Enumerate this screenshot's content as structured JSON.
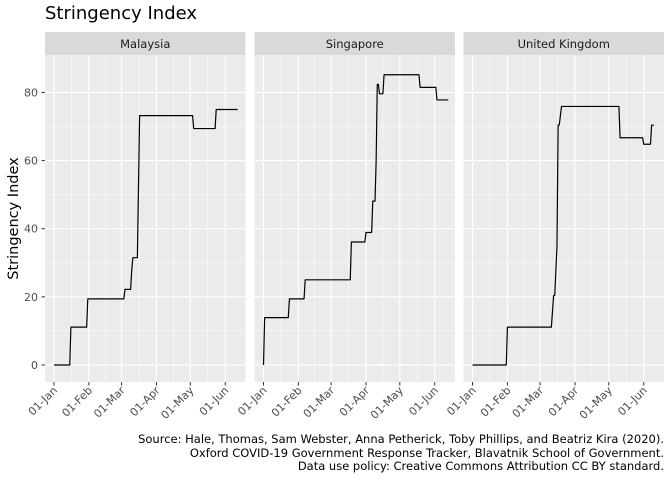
{
  "title": "Stringency Index",
  "caption": {
    "line1": "Source: Hale, Thomas, Sam Webster, Anna Petherick, Toby Phillips, and Beatriz Kira (2020).",
    "line2": "Oxford COVID-19 Government Response Tracker, Blavatnik School of Government.",
    "line3": "Data use policy: Creative Commons Attribution CC BY standard."
  },
  "colors": {
    "panel_bg": "#ebebeb",
    "strip_bg": "#d9d9d9",
    "grid_major": "#ffffff",
    "line": "#000000",
    "tick_text": "#4d4d4d"
  },
  "chart_data": {
    "type": "line",
    "facets": [
      "Malaysia",
      "Singapore",
      "United Kingdom"
    ],
    "ylabel": "Stringency Index",
    "xlabel": "",
    "ylim": [
      -5,
      91
    ],
    "y_ticks": [
      0,
      20,
      40,
      60,
      80
    ],
    "x_ticks": [
      {
        "date": "2020-01-01",
        "label": "01-Jan"
      },
      {
        "date": "2020-02-01",
        "label": "01-Feb"
      },
      {
        "date": "2020-03-01",
        "label": "01-Mar"
      },
      {
        "date": "2020-04-01",
        "label": "01-Apr"
      },
      {
        "date": "2020-05-01",
        "label": "01-May"
      },
      {
        "date": "2020-06-01",
        "label": "01-Jun"
      }
    ],
    "xlim": [
      "2019-12-24",
      "2020-06-19"
    ],
    "grid": true,
    "series": [
      {
        "name": "Malaysia",
        "points": [
          {
            "x": "2020-01-01",
            "y": 0
          },
          {
            "x": "2020-01-15",
            "y": 0
          },
          {
            "x": "2020-01-16",
            "y": 11.1
          },
          {
            "x": "2020-01-30",
            "y": 11.1
          },
          {
            "x": "2020-01-31",
            "y": 19.4
          },
          {
            "x": "2020-03-03",
            "y": 19.4
          },
          {
            "x": "2020-03-04",
            "y": 22.2
          },
          {
            "x": "2020-03-09",
            "y": 22.2
          },
          {
            "x": "2020-03-10",
            "y": 27.8
          },
          {
            "x": "2020-03-11",
            "y": 31.5
          },
          {
            "x": "2020-03-15",
            "y": 31.5
          },
          {
            "x": "2020-03-17",
            "y": 73.2
          },
          {
            "x": "2020-05-03",
            "y": 73.2
          },
          {
            "x": "2020-05-04",
            "y": 69.4
          },
          {
            "x": "2020-05-23",
            "y": 69.4
          },
          {
            "x": "2020-05-24",
            "y": 75
          },
          {
            "x": "2020-06-12",
            "y": 75
          }
        ]
      },
      {
        "name": "Singapore",
        "points": [
          {
            "x": "2020-01-01",
            "y": 0
          },
          {
            "x": "2020-01-02",
            "y": 13.9
          },
          {
            "x": "2020-01-23",
            "y": 13.9
          },
          {
            "x": "2020-01-24",
            "y": 19.4
          },
          {
            "x": "2020-02-06",
            "y": 19.4
          },
          {
            "x": "2020-02-07",
            "y": 25
          },
          {
            "x": "2020-03-18",
            "y": 25
          },
          {
            "x": "2020-03-19",
            "y": 36.1
          },
          {
            "x": "2020-03-31",
            "y": 36.1
          },
          {
            "x": "2020-04-01",
            "y": 38.9
          },
          {
            "x": "2020-04-06",
            "y": 38.9
          },
          {
            "x": "2020-04-07",
            "y": 48.1
          },
          {
            "x": "2020-04-09",
            "y": 48.1
          },
          {
            "x": "2020-04-10",
            "y": 60
          },
          {
            "x": "2020-04-11",
            "y": 82.4
          },
          {
            "x": "2020-04-12",
            "y": 82.4
          },
          {
            "x": "2020-04-13",
            "y": 79.6
          },
          {
            "x": "2020-04-16",
            "y": 79.6
          },
          {
            "x": "2020-04-17",
            "y": 85.2
          },
          {
            "x": "2020-05-18",
            "y": 85.2
          },
          {
            "x": "2020-05-19",
            "y": 81.5
          },
          {
            "x": "2020-06-02",
            "y": 81.5
          },
          {
            "x": "2020-06-03",
            "y": 77.8
          },
          {
            "x": "2020-06-13",
            "y": 77.8
          }
        ]
      },
      {
        "name": "United Kingdom",
        "points": [
          {
            "x": "2020-01-01",
            "y": 0
          },
          {
            "x": "2020-01-31",
            "y": 0
          },
          {
            "x": "2020-02-01",
            "y": 11.1
          },
          {
            "x": "2020-03-11",
            "y": 11.1
          },
          {
            "x": "2020-03-13",
            "y": 20.4
          },
          {
            "x": "2020-03-14",
            "y": 20.4
          },
          {
            "x": "2020-03-16",
            "y": 35
          },
          {
            "x": "2020-03-17",
            "y": 70.4
          },
          {
            "x": "2020-03-18",
            "y": 70.4
          },
          {
            "x": "2020-03-20",
            "y": 75.9
          },
          {
            "x": "2020-05-10",
            "y": 75.9
          },
          {
            "x": "2020-05-11",
            "y": 66.7
          },
          {
            "x": "2020-05-31",
            "y": 66.7
          },
          {
            "x": "2020-06-01",
            "y": 64.8
          },
          {
            "x": "2020-06-07",
            "y": 64.8
          },
          {
            "x": "2020-06-08",
            "y": 70.4
          },
          {
            "x": "2020-06-10",
            "y": 70.4
          }
        ]
      }
    ]
  }
}
